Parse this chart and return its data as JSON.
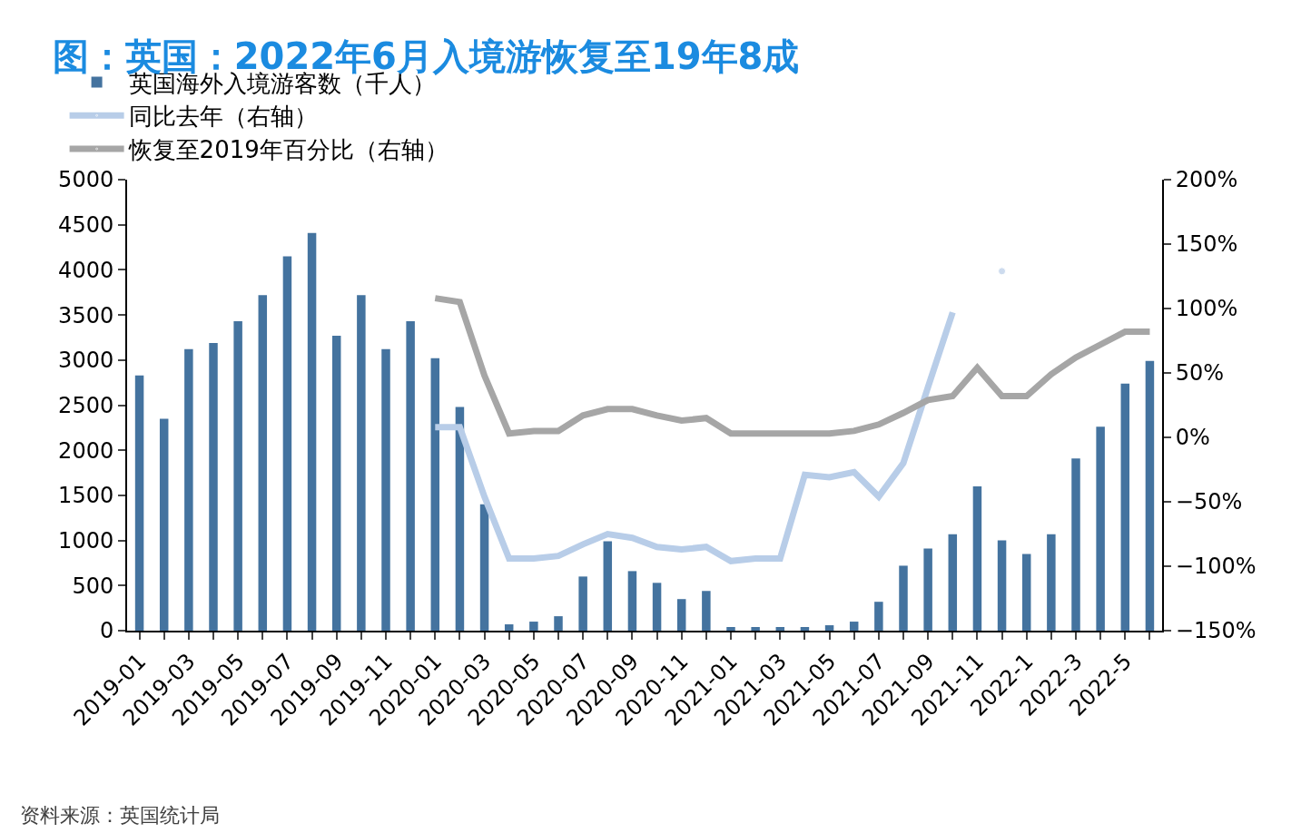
{
  "chart_data": {
    "type": "bar",
    "title": "图：英国：2022年6月入境游恢复至19年8成",
    "categories": [
      "2019-01",
      null,
      "2019-03",
      null,
      "2019-05",
      null,
      "2019-07",
      null,
      "2019-09",
      null,
      "2019-11",
      null,
      "2020-01",
      null,
      "2020-03",
      null,
      "2020-05",
      null,
      "2020-07",
      null,
      "2020-09",
      null,
      "2020-11",
      null,
      "2021-01",
      null,
      "2021-03",
      null,
      "2021-05",
      null,
      "2021-07",
      null,
      "2021-09",
      null,
      "2021-11",
      null,
      "2022-1",
      null,
      "2022-3",
      null,
      "2022-5",
      null
    ],
    "series": [
      {
        "name": "英国海外入境游客数（千人）",
        "color": "#44739f",
        "values": [
          2830,
          2350,
          3120,
          3190,
          3430,
          3720,
          4150,
          4410,
          3270,
          3720,
          3120,
          3430,
          3020,
          2480,
          1400,
          70,
          100,
          160,
          600,
          990,
          660,
          530,
          350,
          440,
          40,
          40,
          40,
          40,
          60,
          100,
          320,
          720,
          910,
          1070,
          1600,
          1000,
          850,
          1070,
          1910,
          2260,
          2740,
          2990
        ]
      },
      {
        "name": "同比去年（右轴）",
        "type": "line",
        "axis": "y2",
        "color": "#b8cde8",
        "values": [
          null,
          null,
          null,
          null,
          null,
          null,
          null,
          null,
          null,
          null,
          null,
          null,
          8,
          8,
          -46,
          -94,
          -94,
          -92,
          -83,
          -75,
          -78,
          -85,
          -87,
          -85,
          -96,
          -94,
          -94,
          -29,
          -31,
          -27,
          -46,
          -20,
          39,
          97,
          null,
          129,
          null,
          null,
          null,
          null,
          null,
          null
        ]
      },
      {
        "name": "恢复至2019年百分比（右轴）",
        "type": "line",
        "axis": "y2",
        "color": "#a6a6a6",
        "values": [
          null,
          null,
          null,
          null,
          null,
          null,
          null,
          null,
          null,
          null,
          null,
          null,
          108,
          105,
          48,
          3,
          5,
          5,
          17,
          22,
          22,
          17,
          13,
          15,
          3,
          3,
          3,
          3,
          3,
          5,
          10,
          19,
          29,
          32,
          54,
          32,
          32,
          49,
          62,
          72,
          82,
          82
        ]
      }
    ],
    "ylim": [
      0,
      5000
    ],
    "yticks": [
      0,
      500,
      1000,
      1500,
      2000,
      2500,
      3000,
      3500,
      4000,
      4500,
      5000
    ],
    "y2lim": [
      -150,
      200
    ],
    "y2ticks": [
      {
        "value": -150,
        "label": "−150%"
      },
      {
        "value": -100,
        "label": "−100%"
      },
      {
        "value": -50,
        "label": "−50%"
      },
      {
        "value": 0,
        "label": "0%"
      },
      {
        "value": 50,
        "label": "50%"
      },
      {
        "value": 100,
        "label": "100%"
      },
      {
        "value": 150,
        "label": "150%"
      },
      {
        "value": 200,
        "label": "200%"
      }
    ],
    "legend": "top",
    "marker": "none",
    "line_style": "solid",
    "annotations": [
      "资料来源：英国统计局"
    ]
  }
}
